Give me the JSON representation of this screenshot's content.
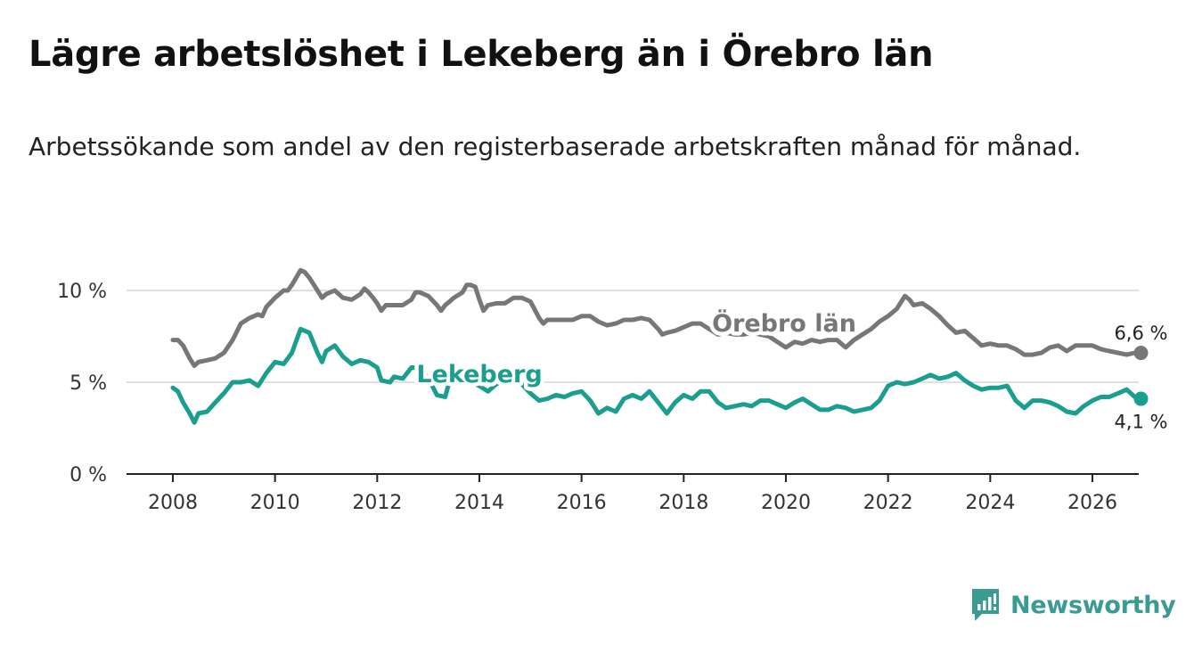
{
  "header": {
    "title": "Lägre arbetslöshet i Lekeberg än i Örebro län",
    "subtitle": "Arbetssökande som andel av den registerbaserade arbetskraften månad för månad."
  },
  "brand": {
    "name": "Newsworthy",
    "icon": "newsworthy-logo-icon",
    "color": "#3a9b93"
  },
  "chart_data": {
    "type": "line",
    "title": "Lägre arbetslöshet i Lekeberg än i Örebro län",
    "subtitle": "Arbetssökande som andel av den registerbaserade arbetskraften månad för månad.",
    "xlabel": "",
    "ylabel": "",
    "xlim": [
      2007.0,
      2027.0
    ],
    "ylim": [
      0,
      10
    ],
    "x_ticks": [
      2008,
      2010,
      2012,
      2014,
      2016,
      2018,
      2020,
      2022,
      2024,
      2026
    ],
    "x_tick_labels": [
      "2008",
      "2010",
      "2012",
      "2014",
      "2016",
      "2018",
      "2020",
      "2022",
      "2024",
      "2026"
    ],
    "y_ticks": [
      0,
      5,
      10
    ],
    "y_tick_labels": [
      "0 %",
      "5 %",
      "10 %"
    ],
    "grid": true,
    "series": [
      {
        "name": "Örebro län",
        "color": "#777777",
        "end_label": "6,6 %",
        "points": [
          [
            2008.0,
            7.3
          ],
          [
            2008.1,
            7.3
          ],
          [
            2008.2,
            7.0
          ],
          [
            2008.33,
            6.3
          ],
          [
            2008.42,
            5.9
          ],
          [
            2008.5,
            6.1
          ],
          [
            2008.67,
            6.2
          ],
          [
            2008.83,
            6.3
          ],
          [
            2009.0,
            6.6
          ],
          [
            2009.17,
            7.3
          ],
          [
            2009.33,
            8.2
          ],
          [
            2009.5,
            8.5
          ],
          [
            2009.67,
            8.7
          ],
          [
            2009.75,
            8.6
          ],
          [
            2009.83,
            9.1
          ],
          [
            2010.0,
            9.6
          ],
          [
            2010.17,
            10.0
          ],
          [
            2010.25,
            10.0
          ],
          [
            2010.33,
            10.3
          ],
          [
            2010.5,
            11.1
          ],
          [
            2010.58,
            11.0
          ],
          [
            2010.67,
            10.7
          ],
          [
            2010.83,
            10.0
          ],
          [
            2010.92,
            9.6
          ],
          [
            2011.0,
            9.8
          ],
          [
            2011.17,
            10.0
          ],
          [
            2011.33,
            9.6
          ],
          [
            2011.5,
            9.5
          ],
          [
            2011.67,
            9.8
          ],
          [
            2011.75,
            10.1
          ],
          [
            2011.83,
            9.9
          ],
          [
            2011.92,
            9.6
          ],
          [
            2012.0,
            9.3
          ],
          [
            2012.08,
            8.9
          ],
          [
            2012.17,
            9.2
          ],
          [
            2012.33,
            9.2
          ],
          [
            2012.5,
            9.2
          ],
          [
            2012.67,
            9.5
          ],
          [
            2012.75,
            9.9
          ],
          [
            2012.83,
            9.9
          ],
          [
            2013.0,
            9.7
          ],
          [
            2013.17,
            9.2
          ],
          [
            2013.25,
            8.9
          ],
          [
            2013.33,
            9.2
          ],
          [
            2013.42,
            9.4
          ],
          [
            2013.5,
            9.6
          ],
          [
            2013.67,
            9.9
          ],
          [
            2013.75,
            10.3
          ],
          [
            2013.83,
            10.3
          ],
          [
            2013.92,
            10.2
          ],
          [
            2014.0,
            9.5
          ],
          [
            2014.08,
            8.9
          ],
          [
            2014.17,
            9.2
          ],
          [
            2014.33,
            9.3
          ],
          [
            2014.5,
            9.3
          ],
          [
            2014.67,
            9.6
          ],
          [
            2014.83,
            9.6
          ],
          [
            2015.0,
            9.4
          ],
          [
            2015.17,
            8.5
          ],
          [
            2015.25,
            8.2
          ],
          [
            2015.33,
            8.4
          ],
          [
            2015.5,
            8.4
          ],
          [
            2015.67,
            8.4
          ],
          [
            2015.83,
            8.4
          ],
          [
            2016.0,
            8.6
          ],
          [
            2016.17,
            8.6
          ],
          [
            2016.33,
            8.3
          ],
          [
            2016.5,
            8.1
          ],
          [
            2016.67,
            8.2
          ],
          [
            2016.83,
            8.4
          ],
          [
            2017.0,
            8.4
          ],
          [
            2017.17,
            8.5
          ],
          [
            2017.33,
            8.4
          ],
          [
            2017.5,
            7.9
          ],
          [
            2017.58,
            7.6
          ],
          [
            2017.67,
            7.7
          ],
          [
            2017.83,
            7.8
          ],
          [
            2018.0,
            8.0
          ],
          [
            2018.17,
            8.2
          ],
          [
            2018.33,
            8.2
          ],
          [
            2018.5,
            7.9
          ],
          [
            2018.67,
            7.6
          ],
          [
            2018.83,
            7.7
          ],
          [
            2019.0,
            7.6
          ],
          [
            2019.17,
            7.6
          ],
          [
            2019.33,
            7.7
          ],
          [
            2019.5,
            7.6
          ],
          [
            2019.67,
            7.5
          ],
          [
            2019.83,
            7.2
          ],
          [
            2020.0,
            6.9
          ],
          [
            2020.17,
            7.2
          ],
          [
            2020.33,
            7.1
          ],
          [
            2020.5,
            7.3
          ],
          [
            2020.67,
            7.2
          ],
          [
            2020.83,
            7.3
          ],
          [
            2021.0,
            7.3
          ],
          [
            2021.17,
            6.9
          ],
          [
            2021.33,
            7.3
          ],
          [
            2021.5,
            7.6
          ],
          [
            2021.67,
            7.9
          ],
          [
            2021.83,
            8.3
          ],
          [
            2022.0,
            8.6
          ],
          [
            2022.17,
            9.0
          ],
          [
            2022.33,
            9.7
          ],
          [
            2022.42,
            9.5
          ],
          [
            2022.5,
            9.2
          ],
          [
            2022.67,
            9.3
          ],
          [
            2022.83,
            9.0
          ],
          [
            2023.0,
            8.6
          ],
          [
            2023.17,
            8.1
          ],
          [
            2023.33,
            7.7
          ],
          [
            2023.5,
            7.8
          ],
          [
            2023.67,
            7.4
          ],
          [
            2023.83,
            7.0
          ],
          [
            2024.0,
            7.1
          ],
          [
            2024.17,
            7.0
          ],
          [
            2024.33,
            7.0
          ],
          [
            2024.5,
            6.8
          ],
          [
            2024.67,
            6.5
          ],
          [
            2024.83,
            6.5
          ],
          [
            2025.0,
            6.6
          ],
          [
            2025.17,
            6.9
          ],
          [
            2025.33,
            7.0
          ],
          [
            2025.5,
            6.7
          ],
          [
            2025.67,
            7.0
          ],
          [
            2025.83,
            7.0
          ],
          [
            2026.0,
            7.0
          ],
          [
            2026.17,
            6.8
          ],
          [
            2026.33,
            6.7
          ],
          [
            2026.5,
            6.6
          ],
          [
            2026.67,
            6.5
          ],
          [
            2026.83,
            6.6
          ],
          [
            2026.95,
            6.6
          ]
        ]
      },
      {
        "name": "Lekeberg",
        "color": "#1a9e8f",
        "end_label": "4,1 %",
        "points": [
          [
            2008.0,
            4.7
          ],
          [
            2008.1,
            4.5
          ],
          [
            2008.2,
            3.9
          ],
          [
            2008.33,
            3.3
          ],
          [
            2008.42,
            2.8
          ],
          [
            2008.5,
            3.3
          ],
          [
            2008.67,
            3.4
          ],
          [
            2008.83,
            3.9
          ],
          [
            2009.0,
            4.4
          ],
          [
            2009.17,
            5.0
          ],
          [
            2009.33,
            5.0
          ],
          [
            2009.5,
            5.1
          ],
          [
            2009.67,
            4.8
          ],
          [
            2009.83,
            5.5
          ],
          [
            2010.0,
            6.1
          ],
          [
            2010.17,
            6.0
          ],
          [
            2010.33,
            6.6
          ],
          [
            2010.5,
            7.9
          ],
          [
            2010.67,
            7.7
          ],
          [
            2010.83,
            6.6
          ],
          [
            2010.92,
            6.1
          ],
          [
            2011.0,
            6.7
          ],
          [
            2011.17,
            7.0
          ],
          [
            2011.33,
            6.4
          ],
          [
            2011.5,
            6.0
          ],
          [
            2011.67,
            6.2
          ],
          [
            2011.83,
            6.1
          ],
          [
            2012.0,
            5.8
          ],
          [
            2012.08,
            5.1
          ],
          [
            2012.25,
            5.0
          ],
          [
            2012.33,
            5.3
          ],
          [
            2012.5,
            5.2
          ],
          [
            2012.67,
            5.8
          ],
          [
            2012.83,
            5.8
          ],
          [
            2013.0,
            5.2
          ],
          [
            2013.17,
            4.3
          ],
          [
            2013.33,
            4.2
          ],
          [
            2013.42,
            5.1
          ],
          [
            2013.5,
            5.0
          ],
          [
            2013.67,
            5.2
          ],
          [
            2013.83,
            5.0
          ],
          [
            2014.0,
            4.8
          ],
          [
            2014.17,
            4.5
          ],
          [
            2014.33,
            4.9
          ],
          [
            2014.5,
            5.1
          ],
          [
            2014.67,
            5.0
          ],
          [
            2014.83,
            4.9
          ],
          [
            2015.0,
            4.4
          ],
          [
            2015.17,
            4.0
          ],
          [
            2015.33,
            4.1
          ],
          [
            2015.5,
            4.3
          ],
          [
            2015.67,
            4.2
          ],
          [
            2015.83,
            4.4
          ],
          [
            2016.0,
            4.5
          ],
          [
            2016.17,
            4.0
          ],
          [
            2016.33,
            3.3
          ],
          [
            2016.5,
            3.6
          ],
          [
            2016.67,
            3.4
          ],
          [
            2016.83,
            4.1
          ],
          [
            2017.0,
            4.3
          ],
          [
            2017.17,
            4.1
          ],
          [
            2017.33,
            4.5
          ],
          [
            2017.5,
            3.9
          ],
          [
            2017.67,
            3.3
          ],
          [
            2017.83,
            3.9
          ],
          [
            2018.0,
            4.3
          ],
          [
            2018.17,
            4.1
          ],
          [
            2018.33,
            4.5
          ],
          [
            2018.5,
            4.5
          ],
          [
            2018.67,
            3.9
          ],
          [
            2018.83,
            3.6
          ],
          [
            2019.0,
            3.7
          ],
          [
            2019.17,
            3.8
          ],
          [
            2019.33,
            3.7
          ],
          [
            2019.5,
            4.0
          ],
          [
            2019.67,
            4.0
          ],
          [
            2019.83,
            3.8
          ],
          [
            2020.0,
            3.6
          ],
          [
            2020.17,
            3.9
          ],
          [
            2020.33,
            4.1
          ],
          [
            2020.5,
            3.8
          ],
          [
            2020.67,
            3.5
          ],
          [
            2020.83,
            3.5
          ],
          [
            2021.0,
            3.7
          ],
          [
            2021.17,
            3.6
          ],
          [
            2021.33,
            3.4
          ],
          [
            2021.5,
            3.5
          ],
          [
            2021.67,
            3.6
          ],
          [
            2021.83,
            4.0
          ],
          [
            2022.0,
            4.8
          ],
          [
            2022.17,
            5.0
          ],
          [
            2022.33,
            4.9
          ],
          [
            2022.5,
            5.0
          ],
          [
            2022.67,
            5.2
          ],
          [
            2022.83,
            5.4
          ],
          [
            2023.0,
            5.2
          ],
          [
            2023.17,
            5.3
          ],
          [
            2023.33,
            5.5
          ],
          [
            2023.5,
            5.1
          ],
          [
            2023.67,
            4.8
          ],
          [
            2023.83,
            4.6
          ],
          [
            2024.0,
            4.7
          ],
          [
            2024.17,
            4.7
          ],
          [
            2024.33,
            4.8
          ],
          [
            2024.5,
            4.0
          ],
          [
            2024.67,
            3.6
          ],
          [
            2024.83,
            4.0
          ],
          [
            2025.0,
            4.0
          ],
          [
            2025.17,
            3.9
          ],
          [
            2025.33,
            3.7
          ],
          [
            2025.5,
            3.4
          ],
          [
            2025.67,
            3.3
          ],
          [
            2025.83,
            3.7
          ],
          [
            2026.0,
            4.0
          ],
          [
            2026.17,
            4.2
          ],
          [
            2026.33,
            4.2
          ],
          [
            2026.5,
            4.4
          ],
          [
            2026.67,
            4.6
          ],
          [
            2026.83,
            4.2
          ],
          [
            2026.95,
            4.1
          ]
        ]
      }
    ]
  }
}
